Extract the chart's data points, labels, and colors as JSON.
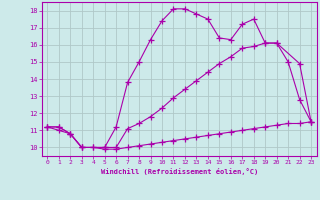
{
  "xlabel": "Windchill (Refroidissement éolien,°C)",
  "xlim": [
    -0.5,
    23.5
  ],
  "ylim": [
    9.5,
    18.5
  ],
  "xticks": [
    0,
    1,
    2,
    3,
    4,
    5,
    6,
    7,
    8,
    9,
    10,
    11,
    12,
    13,
    14,
    15,
    16,
    17,
    18,
    19,
    20,
    21,
    22,
    23
  ],
  "yticks": [
    10,
    11,
    12,
    13,
    14,
    15,
    16,
    17,
    18
  ],
  "bg_color": "#cdeaea",
  "line_color": "#aa00aa",
  "grid_color": "#b0c8c8",
  "lines": [
    {
      "x": [
        0,
        1,
        2,
        3,
        4,
        5,
        6,
        7,
        8,
        9,
        10,
        11,
        12,
        13,
        14,
        15,
        16,
        17,
        18,
        19,
        20,
        21,
        22,
        23
      ],
      "y": [
        11.2,
        11.2,
        10.8,
        10.0,
        10.0,
        10.0,
        10.0,
        11.1,
        11.4,
        11.8,
        12.3,
        12.9,
        13.4,
        13.9,
        14.4,
        14.9,
        15.3,
        15.8,
        15.9,
        16.1,
        16.1,
        15.0,
        12.8,
        11.5
      ]
    },
    {
      "x": [
        0,
        1,
        2,
        3,
        5,
        6,
        7,
        8,
        9,
        10,
        11,
        12,
        13,
        14,
        15,
        16,
        17,
        18,
        19,
        20,
        22,
        23
      ],
      "y": [
        11.2,
        11.2,
        10.8,
        10.0,
        10.0,
        11.2,
        13.8,
        15.0,
        16.3,
        17.4,
        18.1,
        18.1,
        17.8,
        17.5,
        16.4,
        16.3,
        17.2,
        17.5,
        16.1,
        16.1,
        14.9,
        11.5
      ]
    },
    {
      "x": [
        0,
        1,
        2,
        3,
        4,
        5,
        6,
        7,
        8,
        9,
        10,
        11,
        12,
        13,
        14,
        15,
        16,
        17,
        18,
        19,
        20,
        21,
        22,
        23
      ],
      "y": [
        11.2,
        11.0,
        10.8,
        10.0,
        10.0,
        9.9,
        9.9,
        10.0,
        10.1,
        10.2,
        10.3,
        10.4,
        10.5,
        10.6,
        10.7,
        10.8,
        10.9,
        11.0,
        11.1,
        11.2,
        11.3,
        11.4,
        11.4,
        11.5
      ]
    }
  ]
}
